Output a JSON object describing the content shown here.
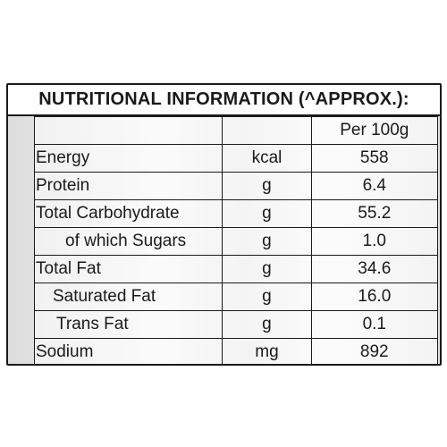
{
  "title": "NUTRITIONAL INFORMATION (^APPROX.):",
  "column_header": "Per 100g",
  "rows": [
    {
      "name": "Energy",
      "unit": "kcal",
      "value": "558"
    },
    {
      "name": "Protein",
      "unit": "g",
      "value": "6.4"
    },
    {
      "name": "Total Carbohydrate",
      "unit": "g",
      "value": "55.2"
    },
    {
      "name": "of which Sugars",
      "unit": "g",
      "value": "1.0"
    },
    {
      "name": "Total Fat",
      "unit": "g",
      "value": "34.6"
    },
    {
      "name": "Saturated Fat",
      "unit": "g",
      "value": "16.0"
    },
    {
      "name": "Trans Fat",
      "unit": "g",
      "value": "0.1"
    },
    {
      "name": "Sodium",
      "unit": "mg",
      "value": "892"
    }
  ]
}
